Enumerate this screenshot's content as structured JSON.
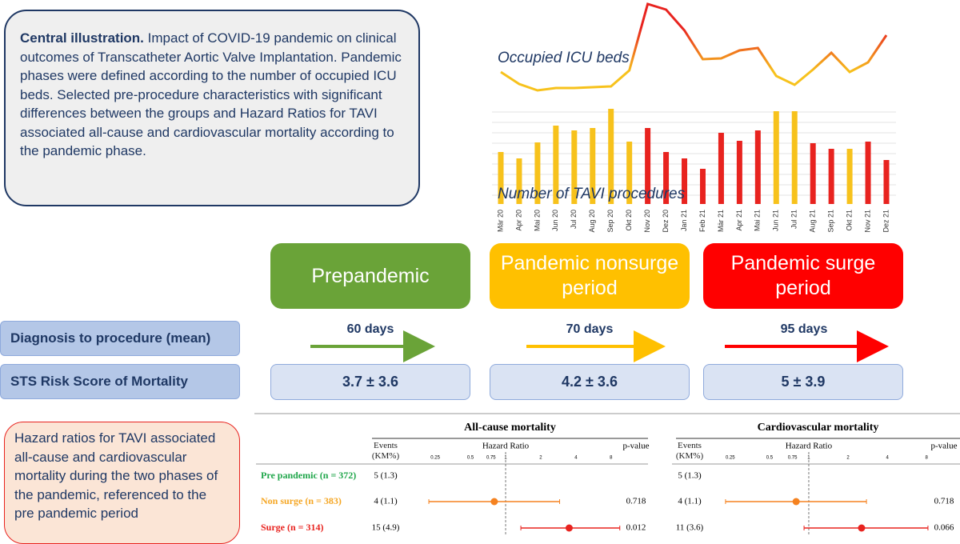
{
  "caption": {
    "lead": "Central illustration.",
    "text": "Impact of COVID-19 pandemic on clinical outcomes of Transcatheter Aortic Valve Implantation. Pandemic phases were defined according to the number of occupied ICU beds. Selected pre-procedure characteristics with significant differences between the groups and Hazard Ratios for TAVI associated all-cause and cardiovascular mortality according to the pandemic phase."
  },
  "phases": [
    {
      "label": "Prepandemic",
      "color": "#6aa338"
    },
    {
      "label": "Pandemic nonsurge period",
      "color": "#ffc000"
    },
    {
      "label": "Pandemic surge period",
      "color": "#ff0000"
    }
  ],
  "rows": {
    "diagnosis": {
      "label": "Diagnosis to procedure (mean)",
      "values": [
        "60 days",
        "70 days",
        "95 days"
      ]
    },
    "sts": {
      "label": "STS Risk Score of Mortality",
      "values": [
        "3.7 ± 3.6",
        "4.2 ± 3.6",
        "5 ± 3.9"
      ]
    }
  },
  "hazard_note": "Hazard ratios for TAVI associated all-cause and cardiovascular mortality during the two phases of the pandemic, referenced to the pre pandemic period",
  "chart_data": [
    {
      "type": "combo",
      "categories": [
        "Mär 20",
        "Apr 20",
        "Mai 20",
        "Jun 20",
        "Jul 20",
        "Aug 20",
        "Sep 20",
        "Okt 20",
        "Nov 20",
        "Dez 20",
        "Jan 21",
        "Feb 21",
        "Mär 21",
        "Apr 21",
        "Mai 21",
        "Jun 21",
        "Jul 21",
        "Aug 21",
        "Sep 21",
        "Okt 21",
        "Nov 21",
        "Dez 21"
      ],
      "series": [
        {
          "name": "Number of TAVI procedures",
          "type": "bar",
          "values": [
            65,
            57,
            77,
            98,
            92,
            95,
            119,
            78,
            95,
            65,
            57,
            44,
            89,
            79,
            92,
            116,
            116,
            76,
            69,
            69,
            78,
            55
          ],
          "colors": [
            "#f7c21c",
            "#f7c21c",
            "#f7c21c",
            "#f7c21c",
            "#f7c21c",
            "#f7c21c",
            "#f7c21c",
            "#f7c21c",
            "#e8231f",
            "#e8231f",
            "#e8231f",
            "#e8231f",
            "#e8231f",
            "#e8231f",
            "#e8231f",
            "#f7c21c",
            "#f7c21c",
            "#e8231f",
            "#e8231f",
            "#f7c21c",
            "#e8231f",
            "#e8231f"
          ]
        },
        {
          "name": "Occupied ICU beds",
          "type": "line",
          "values": [
            30,
            15,
            7,
            10,
            10,
            11,
            12,
            32,
            115,
            108,
            82,
            46,
            47,
            57,
            60,
            25,
            14,
            33,
            54,
            30,
            42,
            76
          ],
          "colors": [
            "#f7c21c",
            "#e8231f"
          ]
        }
      ]
    },
    {
      "type": "forest",
      "title": "All-cause mortality",
      "columns": [
        "Events (KM%)",
        "Hazard Ratio",
        "p-value"
      ],
      "log": true,
      "reference": 1,
      "xlim": [
        0.2,
        10
      ],
      "xticks": [
        0.25,
        0.5,
        0.75,
        1,
        2,
        4,
        8
      ],
      "rows": [
        {
          "label": "Pre pandemic (n = 372)",
          "color": "#1fa64a",
          "events": "5 (1.3)"
        },
        {
          "label": "Non surge (n = 383)",
          "color": "#f5a623",
          "marker": "#f58220",
          "events": "4 (1.1)",
          "hr": 0.8,
          "lower": 0.22,
          "upper": 2.9,
          "p": "0.718"
        },
        {
          "label": "Surge (n = 314)",
          "color": "#e8231f",
          "marker": "#e8231f",
          "events": "15 (4.9)",
          "hr": 3.5,
          "lower": 1.35,
          "upper": 9.5,
          "p": "0.012"
        }
      ]
    },
    {
      "type": "forest",
      "title": "Cardiovascular mortality",
      "columns": [
        "Events (KM%)",
        "Hazard Ratio",
        "p-value"
      ],
      "log": true,
      "reference": 1,
      "xlim": [
        0.2,
        10
      ],
      "xticks": [
        0.25,
        0.5,
        0.75,
        1,
        2,
        4,
        8
      ],
      "rows": [
        {
          "events": "5 (1.3)"
        },
        {
          "marker": "#f58220",
          "events": "4 (1.1)",
          "hr": 0.8,
          "lower": 0.23,
          "upper": 2.77,
          "p": "0.718"
        },
        {
          "marker": "#e8231f",
          "events": "11 (3.6)",
          "hr": 2.54,
          "lower": 0.92,
          "upper": 8.2,
          "p": "0.066"
        }
      ]
    }
  ]
}
